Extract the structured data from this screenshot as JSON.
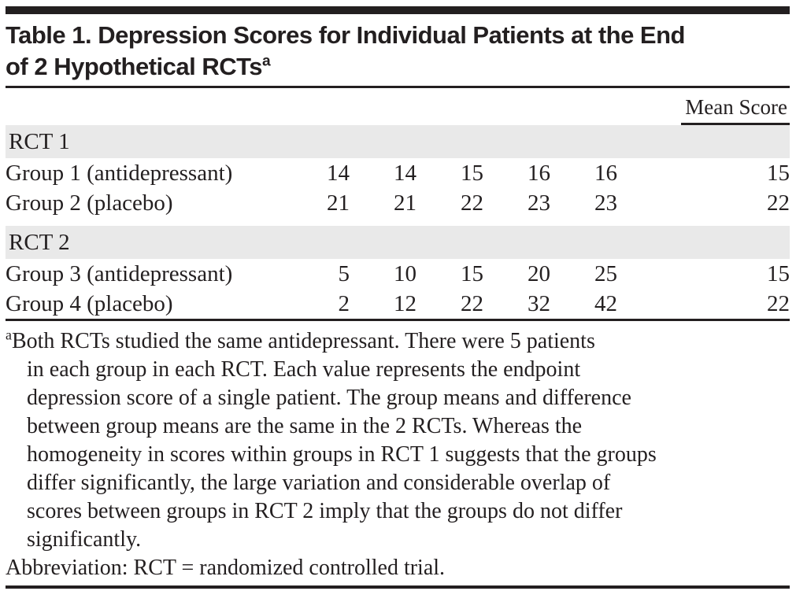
{
  "colors": {
    "background": "#ffffff",
    "text": "#231f20",
    "rule": "#231f20",
    "band": "#e9e9e9"
  },
  "title": {
    "line1": "Table 1. Depression Scores for Individual Patients at the End",
    "line2": "of 2 Hypothetical RCTs",
    "superscript": "a"
  },
  "table": {
    "mean_header": "Mean Score",
    "sections": [
      {
        "label": "RCT 1",
        "rows": [
          {
            "label": "Group 1 (antidepressant)",
            "values": [
              14,
              14,
              15,
              16,
              16
            ],
            "mean": 15
          },
          {
            "label": "Group 2 (placebo)",
            "values": [
              21,
              21,
              22,
              23,
              23
            ],
            "mean": 22
          }
        ]
      },
      {
        "label": "RCT 2",
        "rows": [
          {
            "label": "Group 3 (antidepressant)",
            "values": [
              5,
              10,
              15,
              20,
              25
            ],
            "mean": 15
          },
          {
            "label": "Group 4 (placebo)",
            "values": [
              2,
              12,
              22,
              32,
              42
            ],
            "mean": 22
          }
        ]
      }
    ]
  },
  "footnote": {
    "marker": "a",
    "lines": [
      "Both RCTs studied the same antidepressant. There were 5 patients",
      "in each group in each RCT. Each value represents the endpoint",
      "depression score of a single patient. The group means and difference",
      "between group means are the same in the 2 RCTs. Whereas the",
      "homogeneity in scores within groups in RCT 1 suggests that the groups",
      "differ significantly, the large variation and considerable overlap of",
      "scores between groups in RCT 2 imply that the groups do not differ",
      "significantly."
    ],
    "abbreviation": "Abbreviation: RCT = randomized controlled trial."
  }
}
